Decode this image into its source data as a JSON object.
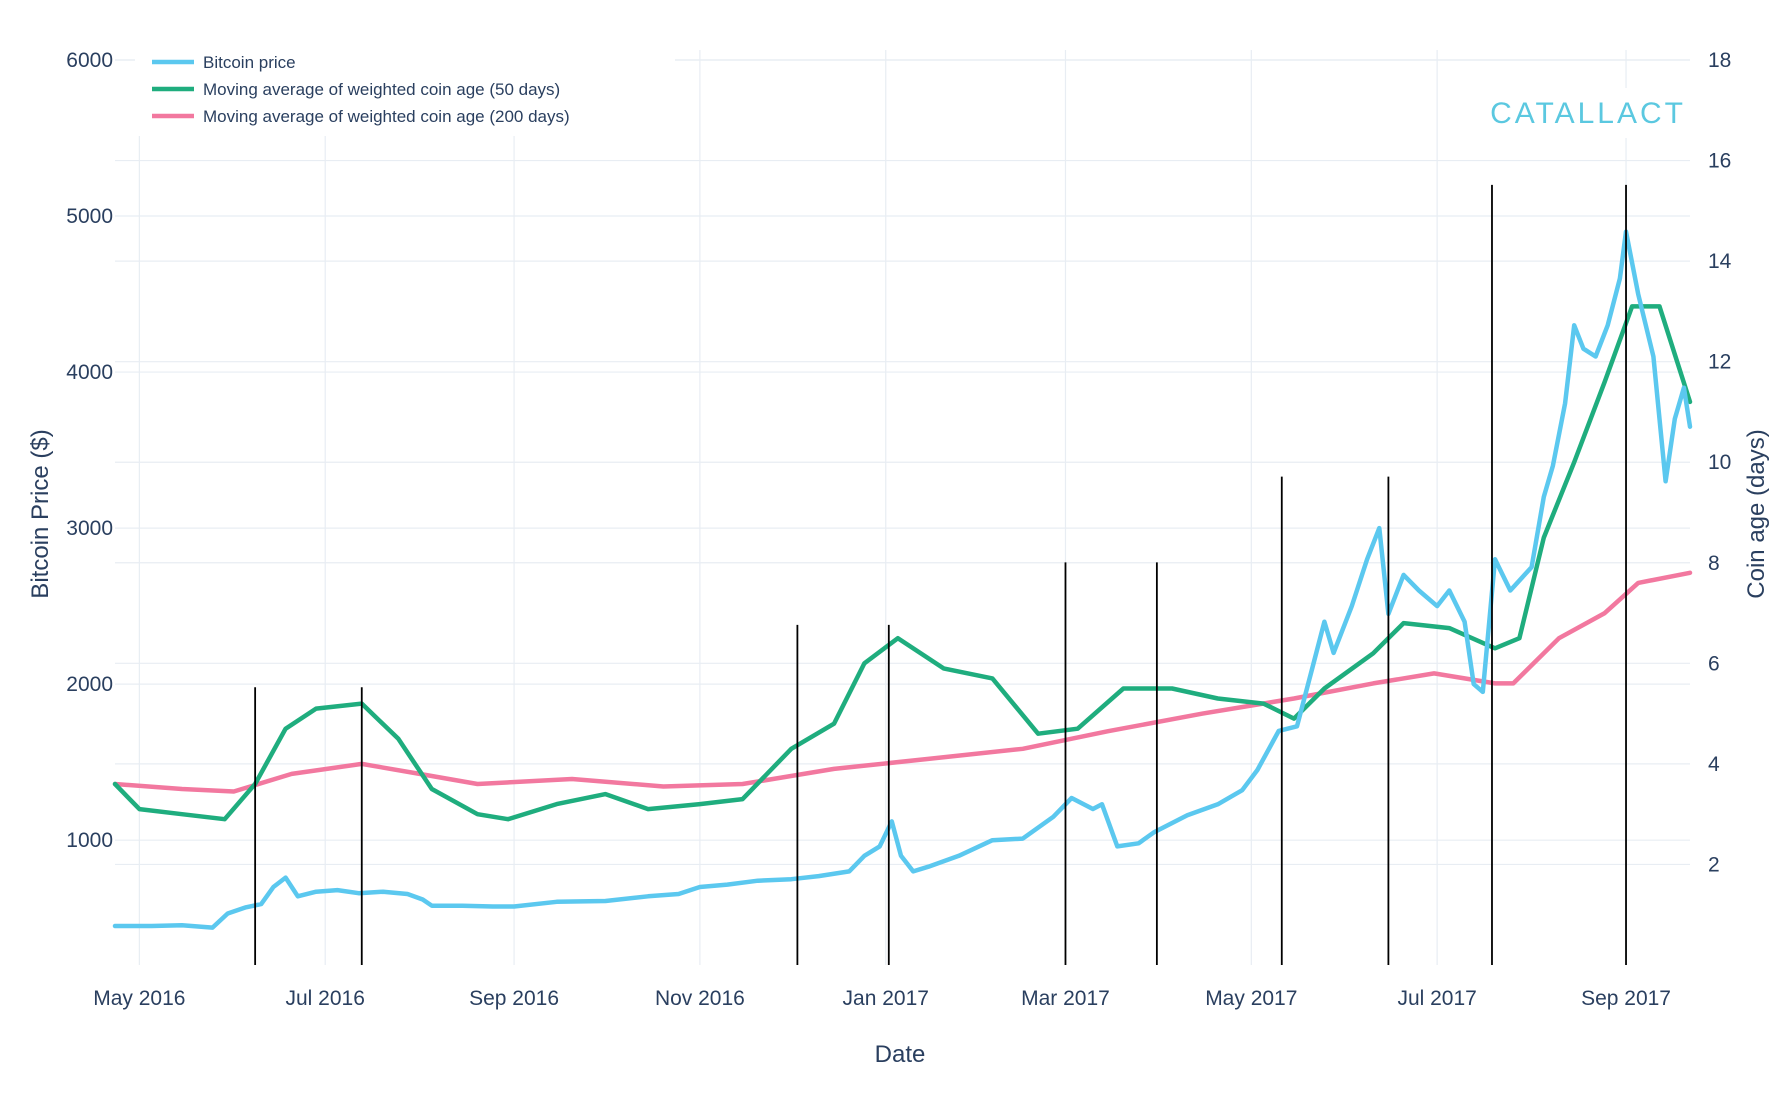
{
  "colors": {
    "price": "#5bc8ef",
    "ma50": "#1fad7e",
    "ma200": "#f2789f",
    "event": "#000000",
    "brand": "#5bc8e0",
    "grid": "#e8edf3",
    "text": "#2a3f5f"
  },
  "brand": {
    "text": "CATALLACT"
  },
  "legend": {
    "placement": "top-left",
    "items": [
      {
        "label": "Bitcoin price",
        "series": "price"
      },
      {
        "label": "Moving average of weighted coin age (50 days)",
        "series": "ma50"
      },
      {
        "label": "Moving average of weighted coin age (200 days)",
        "series": "ma200"
      }
    ]
  },
  "chart_data": {
    "type": "line",
    "xlabel": "Date",
    "ylabel": "Bitcoin Price ($)",
    "y2label": "Coin age (days)",
    "xlim": [
      "2016-04-23",
      "2017-09-22"
    ],
    "ylim": [
      200,
      6000
    ],
    "y2lim": [
      0,
      18
    ],
    "grid": true,
    "x_ticks": [
      {
        "date": "2016-05-01",
        "label": "May 2016"
      },
      {
        "date": "2016-07-01",
        "label": "Jul 2016"
      },
      {
        "date": "2016-09-01",
        "label": "Sep 2016"
      },
      {
        "date": "2016-11-01",
        "label": "Nov 2016"
      },
      {
        "date": "2017-01-01",
        "label": "Jan 2017"
      },
      {
        "date": "2017-03-01",
        "label": "Mar 2017"
      },
      {
        "date": "2017-05-01",
        "label": "May 2017"
      },
      {
        "date": "2017-07-01",
        "label": "Jul 2017"
      },
      {
        "date": "2017-09-01",
        "label": "Sep 2017"
      }
    ],
    "y_ticks": [
      1000,
      2000,
      3000,
      4000,
      5000,
      6000
    ],
    "y2_ticks": [
      2,
      4,
      6,
      8,
      10,
      12,
      14,
      16,
      18
    ],
    "event_lines": [
      {
        "date": "2016-06-08",
        "top": 1980
      },
      {
        "date": "2016-07-13",
        "top": 1980
      },
      {
        "date": "2016-12-03",
        "top": 2380
      },
      {
        "date": "2017-01-02",
        "top": 2380
      },
      {
        "date": "2017-03-01",
        "top": 2780
      },
      {
        "date": "2017-03-31",
        "top": 2780
      },
      {
        "date": "2017-05-11",
        "top": 3330
      },
      {
        "date": "2017-06-15",
        "top": 3330
      },
      {
        "date": "2017-07-19",
        "top": 5200
      },
      {
        "date": "2017-09-01",
        "top": 5200
      }
    ],
    "series": [
      {
        "key": "price",
        "name": "Bitcoin price",
        "axis": "y",
        "points": [
          [
            "2016-04-23",
            450
          ],
          [
            "2016-05-05",
            450
          ],
          [
            "2016-05-15",
            455
          ],
          [
            "2016-05-25",
            440
          ],
          [
            "2016-05-30",
            530
          ],
          [
            "2016-06-05",
            570
          ],
          [
            "2016-06-10",
            590
          ],
          [
            "2016-06-14",
            700
          ],
          [
            "2016-06-18",
            760
          ],
          [
            "2016-06-22",
            640
          ],
          [
            "2016-06-28",
            670
          ],
          [
            "2016-07-05",
            680
          ],
          [
            "2016-07-12",
            660
          ],
          [
            "2016-07-20",
            670
          ],
          [
            "2016-07-28",
            655
          ],
          [
            "2016-08-02",
            620
          ],
          [
            "2016-08-05",
            580
          ],
          [
            "2016-08-15",
            580
          ],
          [
            "2016-08-25",
            575
          ],
          [
            "2016-09-01",
            575
          ],
          [
            "2016-09-15",
            605
          ],
          [
            "2016-10-01",
            610
          ],
          [
            "2016-10-15",
            640
          ],
          [
            "2016-10-25",
            655
          ],
          [
            "2016-11-01",
            700
          ],
          [
            "2016-11-10",
            715
          ],
          [
            "2016-11-20",
            740
          ],
          [
            "2016-12-01",
            750
          ],
          [
            "2016-12-10",
            770
          ],
          [
            "2016-12-20",
            800
          ],
          [
            "2016-12-25",
            900
          ],
          [
            "2016-12-30",
            960
          ],
          [
            "2017-01-03",
            1120
          ],
          [
            "2017-01-06",
            900
          ],
          [
            "2017-01-10",
            800
          ],
          [
            "2017-01-15",
            830
          ],
          [
            "2017-01-25",
            900
          ],
          [
            "2017-02-05",
            1000
          ],
          [
            "2017-02-15",
            1010
          ],
          [
            "2017-02-25",
            1150
          ],
          [
            "2017-03-03",
            1270
          ],
          [
            "2017-03-10",
            1200
          ],
          [
            "2017-03-13",
            1230
          ],
          [
            "2017-03-18",
            960
          ],
          [
            "2017-03-25",
            980
          ],
          [
            "2017-03-30",
            1050
          ],
          [
            "2017-04-10",
            1160
          ],
          [
            "2017-04-20",
            1230
          ],
          [
            "2017-04-28",
            1320
          ],
          [
            "2017-05-03",
            1450
          ],
          [
            "2017-05-10",
            1700
          ],
          [
            "2017-05-16",
            1730
          ],
          [
            "2017-05-21",
            2100
          ],
          [
            "2017-05-25",
            2400
          ],
          [
            "2017-05-28",
            2200
          ],
          [
            "2017-06-03",
            2500
          ],
          [
            "2017-06-08",
            2800
          ],
          [
            "2017-06-12",
            3000
          ],
          [
            "2017-06-15",
            2450
          ],
          [
            "2017-06-20",
            2700
          ],
          [
            "2017-06-25",
            2600
          ],
          [
            "2017-07-01",
            2500
          ],
          [
            "2017-07-05",
            2600
          ],
          [
            "2017-07-10",
            2400
          ],
          [
            "2017-07-13",
            2000
          ],
          [
            "2017-07-16",
            1950
          ],
          [
            "2017-07-20",
            2800
          ],
          [
            "2017-07-25",
            2600
          ],
          [
            "2017-08-01",
            2750
          ],
          [
            "2017-08-05",
            3200
          ],
          [
            "2017-08-08",
            3400
          ],
          [
            "2017-08-12",
            3800
          ],
          [
            "2017-08-15",
            4300
          ],
          [
            "2017-08-18",
            4150
          ],
          [
            "2017-08-22",
            4100
          ],
          [
            "2017-08-26",
            4300
          ],
          [
            "2017-08-30",
            4600
          ],
          [
            "2017-09-01",
            4900
          ],
          [
            "2017-09-05",
            4500
          ],
          [
            "2017-09-10",
            4100
          ],
          [
            "2017-09-14",
            3300
          ],
          [
            "2017-09-17",
            3700
          ],
          [
            "2017-09-20",
            3900
          ],
          [
            "2017-09-22",
            3650
          ]
        ]
      },
      {
        "key": "ma50",
        "name": "Moving average of weighted coin age (50 days)",
        "axis": "y2",
        "points": [
          [
            "2016-04-23",
            3.6
          ],
          [
            "2016-05-01",
            3.1
          ],
          [
            "2016-05-15",
            3.0
          ],
          [
            "2016-05-29",
            2.9
          ],
          [
            "2016-06-08",
            3.6
          ],
          [
            "2016-06-18",
            4.7
          ],
          [
            "2016-06-28",
            5.1
          ],
          [
            "2016-07-13",
            5.2
          ],
          [
            "2016-07-25",
            4.5
          ],
          [
            "2016-08-05",
            3.5
          ],
          [
            "2016-08-20",
            3.0
          ],
          [
            "2016-08-30",
            2.9
          ],
          [
            "2016-09-15",
            3.2
          ],
          [
            "2016-10-01",
            3.4
          ],
          [
            "2016-10-15",
            3.1
          ],
          [
            "2016-11-01",
            3.2
          ],
          [
            "2016-11-15",
            3.3
          ],
          [
            "2016-12-01",
            4.3
          ],
          [
            "2016-12-15",
            4.8
          ],
          [
            "2016-12-25",
            6.0
          ],
          [
            "2017-01-05",
            6.5
          ],
          [
            "2017-01-20",
            5.9
          ],
          [
            "2017-02-05",
            5.7
          ],
          [
            "2017-02-20",
            4.6
          ],
          [
            "2017-03-05",
            4.7
          ],
          [
            "2017-03-20",
            5.5
          ],
          [
            "2017-04-05",
            5.5
          ],
          [
            "2017-04-20",
            5.3
          ],
          [
            "2017-05-05",
            5.2
          ],
          [
            "2017-05-15",
            4.9
          ],
          [
            "2017-05-25",
            5.5
          ],
          [
            "2017-06-10",
            6.2
          ],
          [
            "2017-06-20",
            6.8
          ],
          [
            "2017-07-05",
            6.7
          ],
          [
            "2017-07-20",
            6.3
          ],
          [
            "2017-07-28",
            6.5
          ],
          [
            "2017-08-05",
            8.5
          ],
          [
            "2017-08-15",
            10.0
          ],
          [
            "2017-08-25",
            11.6
          ],
          [
            "2017-09-03",
            13.1
          ],
          [
            "2017-09-12",
            13.1
          ],
          [
            "2017-09-22",
            11.2
          ]
        ]
      },
      {
        "key": "ma200",
        "name": "Moving average of weighted coin age (200 days)",
        "axis": "y2",
        "points": [
          [
            "2016-04-23",
            3.6
          ],
          [
            "2016-05-15",
            3.5
          ],
          [
            "2016-06-01",
            3.45
          ],
          [
            "2016-06-20",
            3.8
          ],
          [
            "2016-07-13",
            4.0
          ],
          [
            "2016-08-01",
            3.8
          ],
          [
            "2016-08-20",
            3.6
          ],
          [
            "2016-09-20",
            3.7
          ],
          [
            "2016-10-20",
            3.55
          ],
          [
            "2016-11-15",
            3.6
          ],
          [
            "2016-12-15",
            3.9
          ],
          [
            "2017-01-15",
            4.1
          ],
          [
            "2017-02-15",
            4.3
          ],
          [
            "2017-03-15",
            4.65
          ],
          [
            "2017-04-15",
            5.0
          ],
          [
            "2017-05-15",
            5.3
          ],
          [
            "2017-06-10",
            5.6
          ],
          [
            "2017-06-30",
            5.8
          ],
          [
            "2017-07-20",
            5.6
          ],
          [
            "2017-07-26",
            5.6
          ],
          [
            "2017-08-10",
            6.5
          ],
          [
            "2017-08-25",
            7.0
          ],
          [
            "2017-09-05",
            7.6
          ],
          [
            "2017-09-22",
            7.8
          ]
        ]
      }
    ]
  }
}
